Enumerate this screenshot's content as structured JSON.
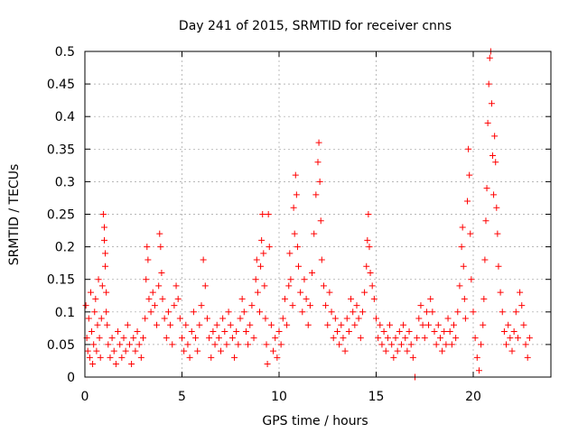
{
  "chart_data": {
    "type": "scatter",
    "title": "Day 241 of 2015, SRMTID for receiver cnns",
    "xlabel": "GPS time / hours",
    "ylabel": "SRMTID / TECUs",
    "xlim": [
      0,
      24
    ],
    "ylim": [
      0,
      0.5
    ],
    "xticks": [
      0,
      5,
      10,
      15,
      20
    ],
    "xtick_labels": [
      "0",
      "5",
      "10",
      "15",
      "20"
    ],
    "yticks": [
      0,
      0.05,
      0.1,
      0.15,
      0.2,
      0.25,
      0.3,
      0.35,
      0.4,
      0.45,
      0.5
    ],
    "ytick_labels": [
      "0",
      "0.05",
      "0.1",
      "0.15",
      "0.2",
      "0.25",
      "0.3",
      "0.35",
      "0.4",
      "0.45",
      "0.5"
    ],
    "grid": true,
    "marker": "+",
    "marker_color": "#ff0000",
    "series": [
      {
        "name": "SRMTID",
        "points": [
          [
            0.05,
            0.11
          ],
          [
            0.1,
            0.06
          ],
          [
            0.15,
            0.04
          ],
          [
            0.2,
            0.09
          ],
          [
            0.25,
            0.03
          ],
          [
            0.3,
            0.13
          ],
          [
            0.35,
            0.07
          ],
          [
            0.4,
            0.02
          ],
          [
            0.45,
            0.05
          ],
          [
            0.5,
            0.1
          ],
          [
            0.55,
            0.12
          ],
          [
            0.6,
            0.04
          ],
          [
            0.65,
            0.08
          ],
          [
            0.7,
            0.15
          ],
          [
            0.75,
            0.06
          ],
          [
            0.8,
            0.03
          ],
          [
            0.85,
            0.09
          ],
          [
            0.9,
            0.14
          ],
          [
            0.95,
            0.25
          ],
          [
            1.0,
            0.23
          ],
          [
            1.0,
            0.21
          ],
          [
            1.05,
            0.19
          ],
          [
            1.05,
            0.17
          ],
          [
            1.1,
            0.13
          ],
          [
            1.1,
            0.1
          ],
          [
            1.15,
            0.08
          ],
          [
            1.2,
            0.05
          ],
          [
            1.3,
            0.03
          ],
          [
            1.4,
            0.06
          ],
          [
            1.5,
            0.04
          ],
          [
            1.6,
            0.02
          ],
          [
            1.7,
            0.07
          ],
          [
            1.8,
            0.05
          ],
          [
            1.9,
            0.03
          ],
          [
            2.0,
            0.06
          ],
          [
            2.1,
            0.04
          ],
          [
            2.2,
            0.08
          ],
          [
            2.3,
            0.05
          ],
          [
            2.4,
            0.02
          ],
          [
            2.5,
            0.06
          ],
          [
            2.6,
            0.04
          ],
          [
            2.7,
            0.07
          ],
          [
            2.8,
            0.05
          ],
          [
            2.9,
            0.03
          ],
          [
            3.0,
            0.06
          ],
          [
            3.1,
            0.09
          ],
          [
            3.15,
            0.15
          ],
          [
            3.2,
            0.2
          ],
          [
            3.25,
            0.18
          ],
          [
            3.3,
            0.12
          ],
          [
            3.4,
            0.1
          ],
          [
            3.5,
            0.13
          ],
          [
            3.6,
            0.11
          ],
          [
            3.7,
            0.08
          ],
          [
            3.8,
            0.14
          ],
          [
            3.85,
            0.22
          ],
          [
            3.9,
            0.2
          ],
          [
            3.95,
            0.16
          ],
          [
            4.0,
            0.12
          ],
          [
            4.1,
            0.09
          ],
          [
            4.2,
            0.06
          ],
          [
            4.3,
            0.1
          ],
          [
            4.4,
            0.08
          ],
          [
            4.5,
            0.05
          ],
          [
            4.6,
            0.11
          ],
          [
            4.7,
            0.14
          ],
          [
            4.8,
            0.12
          ],
          [
            4.9,
            0.09
          ],
          [
            5.0,
            0.06
          ],
          [
            5.1,
            0.04
          ],
          [
            5.2,
            0.08
          ],
          [
            5.3,
            0.05
          ],
          [
            5.4,
            0.03
          ],
          [
            5.5,
            0.07
          ],
          [
            5.6,
            0.1
          ],
          [
            5.7,
            0.06
          ],
          [
            5.8,
            0.04
          ],
          [
            5.9,
            0.08
          ],
          [
            6.0,
            0.11
          ],
          [
            6.1,
            0.18
          ],
          [
            6.2,
            0.14
          ],
          [
            6.3,
            0.09
          ],
          [
            6.4,
            0.06
          ],
          [
            6.5,
            0.03
          ],
          [
            6.6,
            0.07
          ],
          [
            6.7,
            0.05
          ],
          [
            6.8,
            0.08
          ],
          [
            6.9,
            0.06
          ],
          [
            7.0,
            0.04
          ],
          [
            7.1,
            0.09
          ],
          [
            7.2,
            0.07
          ],
          [
            7.3,
            0.05
          ],
          [
            7.4,
            0.1
          ],
          [
            7.5,
            0.08
          ],
          [
            7.6,
            0.06
          ],
          [
            7.7,
            0.03
          ],
          [
            7.8,
            0.07
          ],
          [
            7.9,
            0.05
          ],
          [
            8.0,
            0.09
          ],
          [
            8.1,
            0.12
          ],
          [
            8.2,
            0.1
          ],
          [
            8.3,
            0.07
          ],
          [
            8.4,
            0.05
          ],
          [
            8.5,
            0.08
          ],
          [
            8.6,
            0.11
          ],
          [
            8.7,
            0.06
          ],
          [
            8.8,
            0.15
          ],
          [
            8.85,
            0.18
          ],
          [
            8.9,
            0.13
          ],
          [
            9.0,
            0.1
          ],
          [
            9.05,
            0.17
          ],
          [
            9.1,
            0.21
          ],
          [
            9.15,
            0.25
          ],
          [
            9.2,
            0.19
          ],
          [
            9.25,
            0.14
          ],
          [
            9.3,
            0.09
          ],
          [
            9.35,
            0.05
          ],
          [
            9.4,
            0.02
          ],
          [
            9.45,
            0.25
          ],
          [
            9.5,
            0.2
          ],
          [
            9.6,
            0.08
          ],
          [
            9.7,
            0.04
          ],
          [
            9.8,
            0.06
          ],
          [
            9.9,
            0.03
          ],
          [
            10.0,
            0.07
          ],
          [
            10.1,
            0.05
          ],
          [
            10.2,
            0.09
          ],
          [
            10.3,
            0.12
          ],
          [
            10.4,
            0.08
          ],
          [
            10.5,
            0.14
          ],
          [
            10.55,
            0.19
          ],
          [
            10.6,
            0.15
          ],
          [
            10.7,
            0.11
          ],
          [
            10.75,
            0.26
          ],
          [
            10.8,
            0.22
          ],
          [
            10.85,
            0.31
          ],
          [
            10.9,
            0.28
          ],
          [
            10.95,
            0.2
          ],
          [
            11.0,
            0.17
          ],
          [
            11.1,
            0.13
          ],
          [
            11.2,
            0.1
          ],
          [
            11.3,
            0.15
          ],
          [
            11.4,
            0.12
          ],
          [
            11.5,
            0.08
          ],
          [
            11.6,
            0.11
          ],
          [
            11.7,
            0.16
          ],
          [
            11.8,
            0.22
          ],
          [
            11.9,
            0.28
          ],
          [
            12.0,
            0.33
          ],
          [
            12.05,
            0.36
          ],
          [
            12.1,
            0.3
          ],
          [
            12.15,
            0.24
          ],
          [
            12.2,
            0.18
          ],
          [
            12.3,
            0.14
          ],
          [
            12.4,
            0.11
          ],
          [
            12.5,
            0.08
          ],
          [
            12.6,
            0.13
          ],
          [
            12.7,
            0.1
          ],
          [
            12.8,
            0.06
          ],
          [
            12.9,
            0.09
          ],
          [
            13.0,
            0.07
          ],
          [
            13.1,
            0.05
          ],
          [
            13.2,
            0.08
          ],
          [
            13.3,
            0.06
          ],
          [
            13.4,
            0.04
          ],
          [
            13.5,
            0.09
          ],
          [
            13.6,
            0.07
          ],
          [
            13.7,
            0.12
          ],
          [
            13.8,
            0.1
          ],
          [
            13.9,
            0.08
          ],
          [
            14.0,
            0.11
          ],
          [
            14.1,
            0.09
          ],
          [
            14.2,
            0.06
          ],
          [
            14.3,
            0.1
          ],
          [
            14.4,
            0.13
          ],
          [
            14.5,
            0.17
          ],
          [
            14.55,
            0.21
          ],
          [
            14.6,
            0.25
          ],
          [
            14.65,
            0.2
          ],
          [
            14.7,
            0.16
          ],
          [
            14.8,
            0.14
          ],
          [
            14.9,
            0.12
          ],
          [
            15.0,
            0.09
          ],
          [
            15.1,
            0.06
          ],
          [
            15.2,
            0.08
          ],
          [
            15.3,
            0.05
          ],
          [
            15.4,
            0.07
          ],
          [
            15.5,
            0.04
          ],
          [
            15.6,
            0.06
          ],
          [
            15.7,
            0.08
          ],
          [
            15.8,
            0.05
          ],
          [
            15.9,
            0.03
          ],
          [
            16.0,
            0.06
          ],
          [
            16.1,
            0.04
          ],
          [
            16.2,
            0.07
          ],
          [
            16.3,
            0.05
          ],
          [
            16.4,
            0.08
          ],
          [
            16.5,
            0.06
          ],
          [
            16.6,
            0.04
          ],
          [
            16.7,
            0.07
          ],
          [
            16.8,
            0.05
          ],
          [
            16.9,
            0.03
          ],
          [
            17.0,
            0.0
          ],
          [
            17.1,
            0.06
          ],
          [
            17.2,
            0.09
          ],
          [
            17.3,
            0.11
          ],
          [
            17.4,
            0.08
          ],
          [
            17.5,
            0.06
          ],
          [
            17.6,
            0.1
          ],
          [
            17.7,
            0.08
          ],
          [
            17.8,
            0.12
          ],
          [
            17.9,
            0.1
          ],
          [
            18.0,
            0.07
          ],
          [
            18.1,
            0.05
          ],
          [
            18.2,
            0.08
          ],
          [
            18.3,
            0.06
          ],
          [
            18.4,
            0.04
          ],
          [
            18.5,
            0.07
          ],
          [
            18.6,
            0.05
          ],
          [
            18.7,
            0.09
          ],
          [
            18.8,
            0.07
          ],
          [
            18.9,
            0.05
          ],
          [
            19.0,
            0.08
          ],
          [
            19.1,
            0.06
          ],
          [
            19.2,
            0.1
          ],
          [
            19.3,
            0.14
          ],
          [
            19.4,
            0.2
          ],
          [
            19.45,
            0.23
          ],
          [
            19.5,
            0.17
          ],
          [
            19.55,
            0.12
          ],
          [
            19.6,
            0.09
          ],
          [
            19.7,
            0.27
          ],
          [
            19.75,
            0.35
          ],
          [
            19.8,
            0.31
          ],
          [
            19.85,
            0.22
          ],
          [
            19.9,
            0.15
          ],
          [
            20.0,
            0.1
          ],
          [
            20.1,
            0.06
          ],
          [
            20.2,
            0.03
          ],
          [
            20.3,
            0.01
          ],
          [
            20.4,
            0.05
          ],
          [
            20.5,
            0.08
          ],
          [
            20.55,
            0.12
          ],
          [
            20.6,
            0.18
          ],
          [
            20.65,
            0.24
          ],
          [
            20.7,
            0.29
          ],
          [
            20.75,
            0.39
          ],
          [
            20.8,
            0.45
          ],
          [
            20.85,
            0.49
          ],
          [
            20.9,
            0.5
          ],
          [
            20.95,
            0.42
          ],
          [
            21.0,
            0.34
          ],
          [
            21.05,
            0.28
          ],
          [
            21.1,
            0.37
          ],
          [
            21.15,
            0.33
          ],
          [
            21.2,
            0.26
          ],
          [
            21.25,
            0.22
          ],
          [
            21.3,
            0.17
          ],
          [
            21.4,
            0.13
          ],
          [
            21.5,
            0.1
          ],
          [
            21.6,
            0.07
          ],
          [
            21.7,
            0.05
          ],
          [
            21.8,
            0.08
          ],
          [
            21.9,
            0.06
          ],
          [
            22.0,
            0.04
          ],
          [
            22.1,
            0.07
          ],
          [
            22.2,
            0.1
          ],
          [
            22.3,
            0.06
          ],
          [
            22.4,
            0.13
          ],
          [
            22.5,
            0.11
          ],
          [
            22.6,
            0.08
          ],
          [
            22.7,
            0.05
          ],
          [
            22.8,
            0.03
          ],
          [
            22.9,
            0.06
          ]
        ]
      }
    ]
  }
}
